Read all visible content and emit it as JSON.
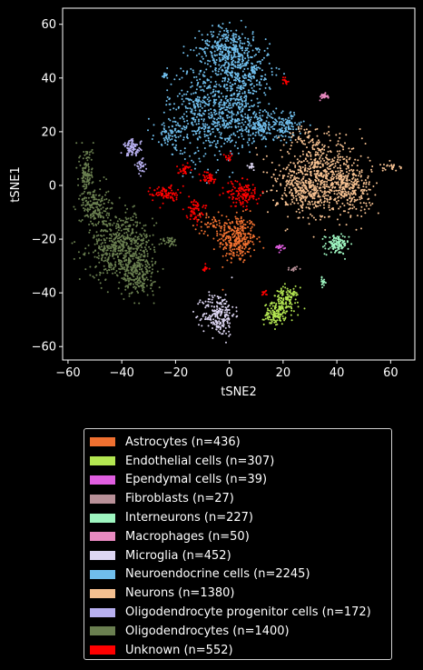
{
  "chart_data": {
    "type": "scatter",
    "xlabel": "tSNE2",
    "ylabel": "tSNE1",
    "xlim": [
      -62,
      69
    ],
    "ylim": [
      -65,
      66
    ],
    "xticks": [
      -60,
      -40,
      -20,
      0,
      20,
      40,
      60
    ],
    "yticks": [
      -60,
      -40,
      -20,
      0,
      20,
      40,
      60
    ],
    "grid": false,
    "legend_placement": "below",
    "series": [
      {
        "name": "Astrocytes (n=436)",
        "color": "#F07030",
        "clusters": [
          {
            "cx": 3,
            "cy": -20,
            "sx": 3.5,
            "sy": 4.5,
            "n": 300
          },
          {
            "cx": -5,
            "cy": -14,
            "sx": 4,
            "sy": 2,
            "n": 60
          }
        ]
      },
      {
        "name": "Endothelial cells (n=307)",
        "color": "#B3E651",
        "clusters": [
          {
            "cx": 21,
            "cy": -43,
            "sx": 2.5,
            "sy": 2.5,
            "n": 140
          },
          {
            "cx": 17,
            "cy": -48,
            "sx": 2,
            "sy": 2,
            "n": 110
          }
        ]
      },
      {
        "name": "Ependymal cells (n=39)",
        "color": "#E05EE0",
        "clusters": [
          {
            "cx": 19,
            "cy": -23,
            "sx": 0.8,
            "sy": 0.5,
            "n": 20
          }
        ]
      },
      {
        "name": "Fibroblasts (n=27)",
        "color": "#B89098",
        "clusters": [
          {
            "cx": 24,
            "cy": -31,
            "sx": 0.8,
            "sy": 0.5,
            "n": 15
          }
        ]
      },
      {
        "name": "Interneurons (n=227)",
        "color": "#9EF5C0",
        "clusters": [
          {
            "cx": 40,
            "cy": -22,
            "sx": 2.2,
            "sy": 1.8,
            "n": 120
          },
          {
            "cx": 35,
            "cy": -36,
            "sx": 0.6,
            "sy": 0.8,
            "n": 15
          }
        ]
      },
      {
        "name": "Macrophages (n=50)",
        "color": "#E88AC0",
        "clusters": [
          {
            "cx": 35,
            "cy": 33,
            "sx": 0.8,
            "sy": 0.6,
            "n": 25
          }
        ]
      },
      {
        "name": "Microglia (n=452)",
        "color": "#DDD6F3",
        "clusters": [
          {
            "cx": -4,
            "cy": -48,
            "sx": 3,
            "sy": 4,
            "n": 220
          },
          {
            "cx": 8,
            "cy": 7,
            "sx": 1,
            "sy": 0.8,
            "n": 15
          }
        ]
      },
      {
        "name": "Neuroendocrine cells (n=2245)",
        "color": "#70BEEC",
        "clusters": [
          {
            "cx": -1,
            "cy": 51,
            "sx": 5,
            "sy": 4,
            "n": 320
          },
          {
            "cx": 6,
            "cy": 42,
            "sx": 5,
            "sy": 5,
            "n": 260
          },
          {
            "cx": -9,
            "cy": 27,
            "sx": 7,
            "sy": 9,
            "n": 500
          },
          {
            "cx": 3,
            "cy": 28,
            "sx": 4,
            "sy": 6,
            "n": 200
          },
          {
            "cx": 12,
            "cy": 22,
            "sx": 4,
            "sy": 3,
            "n": 160
          },
          {
            "cx": 21,
            "cy": 22,
            "sx": 3,
            "sy": 2.5,
            "n": 100
          },
          {
            "cx": -22,
            "cy": 19,
            "sx": 3,
            "sy": 2,
            "n": 60
          },
          {
            "cx": -24,
            "cy": 41,
            "sx": 0.8,
            "sy": 0.8,
            "n": 15
          }
        ]
      },
      {
        "name": "Neurons (n=1380)",
        "color": "#F5C090",
        "clusters": [
          {
            "cx": 34,
            "cy": 4,
            "sx": 8,
            "sy": 6,
            "n": 600
          },
          {
            "cx": 45,
            "cy": -2,
            "sx": 4,
            "sy": 4,
            "n": 200
          },
          {
            "cx": 28,
            "cy": -3,
            "sx": 5,
            "sy": 5,
            "n": 200
          },
          {
            "cx": 60,
            "cy": 7,
            "sx": 2,
            "sy": 0.8,
            "n": 25
          },
          {
            "cx": 28,
            "cy": 18,
            "sx": 3,
            "sy": 2,
            "n": 40
          }
        ]
      },
      {
        "name": "Oligodendrocyte progenitor cells (n=172)",
        "color": "#B8B0F0",
        "clusters": [
          {
            "cx": -36,
            "cy": 14,
            "sx": 1.6,
            "sy": 1.5,
            "n": 90
          },
          {
            "cx": -33,
            "cy": 7,
            "sx": 1,
            "sy": 1.5,
            "n": 30
          }
        ]
      },
      {
        "name": "Oligodendrocytes (n=1400)",
        "color": "#6A7F50",
        "clusters": [
          {
            "cx": -40,
            "cy": -23,
            "sx": 6,
            "sy": 6,
            "n": 600
          },
          {
            "cx": -34,
            "cy": -33,
            "sx": 3,
            "sy": 4,
            "n": 200
          },
          {
            "cx": -50,
            "cy": -8,
            "sx": 2.5,
            "sy": 4,
            "n": 180
          },
          {
            "cx": -53,
            "cy": 5,
            "sx": 1.2,
            "sy": 5,
            "n": 120
          },
          {
            "cx": -22,
            "cy": -21,
            "sx": 1.5,
            "sy": 1,
            "n": 30
          }
        ]
      },
      {
        "name": "Unknown (n=552)",
        "color": "#FF0000",
        "clusters": [
          {
            "cx": 5,
            "cy": -3,
            "sx": 3,
            "sy": 2.5,
            "n": 130
          },
          {
            "cx": -24,
            "cy": -3,
            "sx": 2.5,
            "sy": 1.5,
            "n": 80
          },
          {
            "cx": -13,
            "cy": -9,
            "sx": 1.5,
            "sy": 2,
            "n": 60
          },
          {
            "cx": -17,
            "cy": 6,
            "sx": 1.2,
            "sy": 1,
            "n": 30
          },
          {
            "cx": -8,
            "cy": 3,
            "sx": 1.5,
            "sy": 1,
            "n": 40
          },
          {
            "cx": 21,
            "cy": 39,
            "sx": 0.6,
            "sy": 0.8,
            "n": 15
          },
          {
            "cx": -9,
            "cy": -31,
            "sx": 0.6,
            "sy": 0.6,
            "n": 12
          },
          {
            "cx": 13,
            "cy": -40,
            "sx": 0.6,
            "sy": 0.6,
            "n": 10
          },
          {
            "cx": 0,
            "cy": 10,
            "sx": 1,
            "sy": 1,
            "n": 15
          }
        ]
      }
    ]
  }
}
